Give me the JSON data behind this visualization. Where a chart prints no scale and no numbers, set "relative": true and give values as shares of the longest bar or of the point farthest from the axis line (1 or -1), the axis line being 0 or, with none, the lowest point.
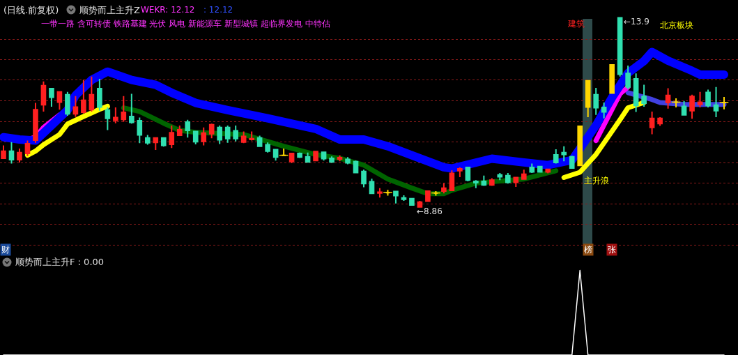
{
  "chart_data": [
    {
      "type": "candlestick",
      "title": "(日线.前复权)",
      "subtitle": "顺势而上主升Z",
      "annotations": [
        "WEKR: 12.12",
        ": 12.12",
        "一带一路 含可转债 铁路基建 光伏 风电 新能源车 新型城镇 超临界发电 中特估",
        "建筑",
        "北京板块",
        "主升浪",
        "←8.86",
        "←13.9",
        "财",
        "榜",
        "张"
      ],
      "categories": [
        null,
        null,
        null,
        null,
        null,
        null,
        null,
        null,
        null,
        null,
        null,
        null,
        null,
        null,
        null,
        null,
        null,
        null,
        null,
        null,
        null,
        null,
        null,
        null,
        null,
        null,
        null,
        null,
        null,
        null,
        null,
        null,
        null,
        null,
        null,
        null,
        null,
        null,
        null,
        null,
        null,
        null,
        null,
        null,
        null,
        null,
        null,
        null,
        null,
        null,
        null,
        null,
        null,
        null,
        null,
        null,
        null,
        null,
        null,
        null,
        null,
        null,
        null,
        null,
        null,
        null,
        null,
        null,
        null,
        null,
        null,
        null,
        null,
        null,
        null,
        null,
        null,
        null,
        null,
        null,
        null,
        null,
        null,
        null,
        null,
        null,
        null,
        null,
        null,
        null,
        null
      ],
      "ohlc": [
        [
          10.17,
          10.51,
          10.15,
          10.36
        ],
        [
          10.36,
          10.6,
          10.03,
          10.13
        ],
        [
          10.13,
          10.43,
          10.06,
          10.32
        ],
        [
          10.3,
          10.64,
          10.23,
          10.56
        ],
        [
          10.65,
          11.64,
          10.58,
          11.46
        ],
        [
          11.59,
          12.21,
          11.41,
          12.1
        ],
        [
          12.02,
          12.02,
          11.54,
          11.79
        ],
        [
          11.66,
          11.94,
          11.46,
          11.93
        ],
        [
          11.86,
          11.93,
          11.3,
          11.35
        ],
        [
          11.35,
          11.82,
          11.27,
          11.53
        ],
        [
          11.39,
          12.25,
          11.36,
          11.71
        ],
        [
          11.46,
          12.34,
          11.41,
          11.86
        ],
        [
          12.02,
          12.28,
          11.43,
          11.53
        ],
        [
          11.45,
          11.52,
          10.92,
          11.23
        ],
        [
          11.18,
          11.52,
          11.1,
          11.25
        ],
        [
          11.2,
          11.82,
          11.14,
          11.39
        ],
        [
          11.28,
          11.88,
          11.09,
          11.12
        ],
        [
          11.17,
          11.25,
          10.57,
          10.79
        ],
        [
          10.71,
          10.79,
          10.53,
          10.58
        ],
        [
          10.59,
          10.71,
          10.39,
          10.71
        ],
        [
          10.71,
          10.73,
          10.48,
          10.51
        ],
        [
          10.54,
          11.04,
          10.44,
          10.85
        ],
        [
          10.78,
          11.04,
          10.77,
          10.93
        ],
        [
          11.13,
          11.19,
          10.72,
          10.91
        ],
        [
          10.88,
          10.9,
          10.54,
          10.61
        ],
        [
          10.62,
          10.99,
          10.51,
          10.84
        ],
        [
          10.82,
          11.09,
          10.7,
          11.06
        ],
        [
          10.99,
          11.04,
          10.55,
          10.66
        ],
        [
          10.99,
          11.04,
          10.58,
          10.69
        ],
        [
          10.9,
          11.04,
          10.62,
          10.69
        ],
        [
          10.6,
          10.88,
          10.57,
          10.75
        ],
        [
          10.67,
          10.88,
          10.64,
          10.69
        ],
        [
          10.71,
          10.77,
          10.47,
          10.49
        ],
        [
          10.53,
          10.59,
          10.32,
          10.36
        ],
        [
          10.4,
          10.41,
          10.11,
          10.2
        ],
        [
          10.25,
          10.43,
          10.24,
          10.25
        ],
        [
          10.09,
          10.3,
          10.04,
          10.3
        ],
        [
          10.3,
          10.32,
          10.18,
          10.2
        ],
        [
          10.21,
          10.32,
          10.06,
          10.07
        ],
        [
          10.11,
          10.35,
          10.1,
          10.35
        ],
        [
          10.33,
          10.35,
          10.11,
          10.16
        ],
        [
          10.17,
          10.22,
          10.05,
          10.07
        ],
        [
          10.15,
          10.25,
          10.09,
          10.19
        ],
        [
          10.14,
          10.2,
          10.01,
          10.05
        ],
        [
          10.08,
          10.11,
          9.79,
          9.79
        ],
        [
          9.82,
          9.87,
          9.4,
          9.5
        ],
        [
          9.55,
          9.63,
          9.24,
          9.24
        ],
        [
          9.25,
          9.38,
          9.13,
          9.27
        ],
        [
          9.26,
          9.33,
          9.18,
          9.26
        ],
        [
          9.29,
          9.29,
          8.97,
          9.18
        ],
        [
          9.12,
          9.19,
          9.04,
          9.08
        ],
        [
          9.1,
          9.12,
          8.92,
          8.93
        ],
        [
          8.88,
          9.04,
          8.86,
          9.01
        ],
        [
          9.03,
          9.32,
          9.02,
          9.3
        ],
        [
          9.25,
          9.3,
          9.18,
          9.25
        ],
        [
          9.3,
          9.51,
          9.24,
          9.38
        ],
        [
          9.32,
          9.85,
          9.3,
          9.77
        ],
        [
          9.84,
          9.93,
          9.67,
          9.89
        ],
        [
          9.93,
          9.93,
          9.56,
          9.59
        ],
        [
          9.56,
          9.59,
          9.38,
          9.52
        ],
        [
          9.56,
          9.71,
          9.44,
          9.46
        ],
        [
          9.46,
          9.64,
          9.44,
          9.59
        ],
        [
          9.73,
          9.78,
          9.59,
          9.68
        ],
        [
          9.71,
          9.78,
          9.5,
          9.53
        ],
        [
          9.53,
          9.66,
          9.41,
          9.66
        ],
        [
          9.62,
          9.87,
          9.61,
          9.75
        ],
        [
          9.93,
          10.03,
          9.78,
          9.81
        ],
        [
          9.95,
          9.95,
          9.79,
          9.81
        ],
        [
          9.81,
          9.88,
          9.77,
          9.88
        ],
        [
          10.26,
          10.41,
          10.03,
          10.06
        ],
        [
          10.32,
          10.49,
          10.09,
          10.27
        ],
        [
          10.21,
          10.24,
          9.9,
          9.91
        ],
        [
          9.98,
          11.02,
          9.98,
          11.02
        ],
        [
          11.53,
          12.23,
          11.26,
          12.23
        ],
        [
          11.86,
          12.04,
          11.32,
          11.51
        ],
        [
          11.52,
          11.65,
          11.23,
          11.4
        ],
        [
          11.9,
          12.65,
          11.9,
          12.65
        ],
        [
          13.9,
          13.9,
          12.34,
          12.4
        ],
        [
          12.42,
          12.63,
          12.0,
          12.06
        ],
        [
          12.28,
          12.42,
          11.4,
          11.57
        ],
        [
          11.81,
          12.12,
          11.54,
          11.63
        ],
        [
          10.99,
          11.41,
          10.81,
          11.23
        ],
        [
          11.09,
          11.26,
          11.03,
          11.23
        ],
        [
          11.65,
          12.03,
          11.49,
          11.84
        ],
        [
          11.66,
          11.76,
          11.52,
          11.66
        ],
        [
          11.55,
          11.69,
          11.32,
          11.32
        ],
        [
          11.43,
          11.86,
          11.22,
          11.81
        ],
        [
          11.6,
          11.93,
          11.52,
          11.66
        ],
        [
          11.92,
          11.99,
          11.52,
          11.57
        ],
        [
          11.58,
          12.06,
          11.26,
          11.43
        ],
        [
          11.65,
          11.8,
          11.47,
          11.65
        ]
      ],
      "colors": [
        "#ff2020",
        "#30e0b0",
        "#ff2020",
        "#ff2020",
        "#ff2020",
        "#ff2020",
        "#30e0b0",
        "#ff2020",
        "#30e0b0",
        "#ff2020",
        "#ff2020",
        "#ff2020",
        "#30e0b0",
        "#30e0b0",
        "#ff2020",
        "#ff2020",
        "#30e0b0",
        "#30e0b0",
        "#30e0b0",
        "#ff2020",
        "#30e0b0",
        "#ff2020",
        "#ff2020",
        "#30e0b0",
        "#30e0b0",
        "#ff2020",
        "#ff2020",
        "#30e0b0",
        "#30e0b0",
        "#30e0b0",
        "#ff2020",
        "#ff2020",
        "#30e0b0",
        "#30e0b0",
        "#30e0b0",
        "#ffd700",
        "#ff2020",
        "#30e0b0",
        "#30e0b0",
        "#ff2020",
        "#30e0b0",
        "#30e0b0",
        "#ff2020",
        "#30e0b0",
        "#30e0b0",
        "#30e0b0",
        "#30e0b0",
        "#ff2020",
        "#ffd700",
        "#30e0b0",
        "#30e0b0",
        "#30e0b0",
        "#ff2020",
        "#ff2020",
        "#ffd700",
        "#ff2020",
        "#ff2020",
        "#ff2020",
        "#30e0b0",
        "#30e0b0",
        "#30e0b0",
        "#ff2020",
        "#30e0b0",
        "#30e0b0",
        "#ff2020",
        "#ff2020",
        "#30e0b0",
        "#30e0b0",
        "#ff2020",
        "#30e0b0",
        "#30e0b0",
        "#30e0b0",
        "#ffd700",
        "#ffd700",
        "#30e0b0",
        "#30e0b0",
        "#ffd700",
        "#30e0b0",
        "#30e0b0",
        "#30e0b0",
        "#30e0b0",
        "#ff2020",
        "#ff2020",
        "#ff2020",
        "#ffd700",
        "#30e0b0",
        "#ff2020",
        "#ff2020",
        "#30e0b0",
        "#30e0b0",
        "#ffd700"
      ],
      "series": [
        {
          "type": "line",
          "color": "#0000ff",
          "values": [
            10.73,
            null,
            10.67,
            null,
            10.64,
            null,
            null,
            null,
            11.45,
            11.84,
            null,
            12.25,
            null,
            12.47,
            null,
            null,
            12.25,
            null,
            null,
            12.12,
            null,
            11.91,
            null,
            null,
            11.64,
            null,
            null,
            null,
            11.45,
            null,
            null,
            null,
            null,
            11.23,
            null,
            null,
            null,
            null,
            null,
            10.95,
            null,
            null,
            10.67,
            null,
            null,
            10.67,
            null,
            null,
            10.49,
            null,
            null,
            10.25,
            null,
            null,
            null,
            9.93,
            9.9,
            null,
            null,
            null,
            null,
            10.16,
            null,
            null,
            null,
            10.06,
            null,
            null,
            9.99,
            null,
            10.08,
            10.12,
            null,
            null,
            11.04,
            null,
            11.78,
            null,
            12.43,
            null,
            12.75,
            12.99,
            null,
            12.76,
            null,
            null,
            12.49,
            12.39,
            null,
            null,
            12.39
          ]
        },
        {
          "type": "line",
          "color": "#ff00ff",
          "values": [
            null,
            null,
            null,
            10.67,
            10.73,
            10.99,
            null,
            11.32,
            null,
            null,
            null,
            null,
            null,
            null,
            null,
            null,
            null,
            null,
            null,
            null,
            null,
            null,
            null,
            null,
            null,
            null,
            null,
            null,
            null,
            null,
            null,
            null,
            null,
            null,
            null,
            null,
            null,
            null,
            null,
            null,
            null,
            null,
            null,
            null,
            null,
            null,
            null,
            null,
            null,
            null,
            null,
            null,
            null,
            null,
            null,
            null,
            null,
            null,
            null,
            null,
            null,
            null,
            null,
            null,
            null,
            null,
            null,
            null,
            null,
            null,
            null,
            null,
            null,
            null,
            null,
            null,
            null,
            null,
            null,
            null,
            null,
            null,
            null,
            null,
            null,
            null,
            null,
            null,
            null,
            null,
            null
          ]
        },
        {
          "type": "line",
          "color": "#ff00ff",
          "values": [
            null,
            null,
            null,
            null,
            null,
            null,
            null,
            null,
            null,
            null,
            null,
            null,
            null,
            null,
            null,
            null,
            null,
            null,
            null,
            null,
            null,
            null,
            null,
            null,
            null,
            null,
            null,
            null,
            null,
            null,
            null,
            null,
            null,
            null,
            null,
            null,
            null,
            null,
            null,
            null,
            null,
            null,
            null,
            null,
            null,
            null,
            null,
            null,
            null,
            null,
            null,
            null,
            null,
            null,
            null,
            null,
            null,
            null,
            null,
            null,
            null,
            null,
            null,
            null,
            null,
            null,
            null,
            null,
            null,
            null,
            null,
            null,
            null,
            null,
            10.64,
            null,
            null,
            11.88,
            12.06,
            null,
            null,
            null,
            null,
            null,
            null,
            null,
            null,
            null,
            null,
            null,
            null
          ]
        },
        {
          "type": "line",
          "color": "#4040e0",
          "values": [
            null,
            null,
            null,
            null,
            null,
            null,
            null,
            null,
            null,
            null,
            null,
            null,
            null,
            null,
            null,
            null,
            null,
            null,
            null,
            null,
            null,
            null,
            null,
            null,
            null,
            null,
            null,
            null,
            null,
            null,
            null,
            null,
            null,
            null,
            null,
            null,
            null,
            null,
            null,
            null,
            null,
            null,
            null,
            null,
            null,
            null,
            null,
            null,
            null,
            null,
            null,
            null,
            null,
            null,
            null,
            null,
            null,
            null,
            null,
            null,
            null,
            null,
            null,
            null,
            null,
            null,
            null,
            null,
            null,
            null,
            null,
            null,
            null,
            null,
            null,
            null,
            null,
            null,
            11.91,
            null,
            null,
            11.73,
            11.65,
            null,
            null,
            11.6,
            null,
            null,
            null,
            null,
            11.6
          ]
        },
        {
          "type": "line",
          "color": "#ffff00",
          "values": [
            null,
            null,
            null,
            10.25,
            10.36,
            10.53,
            null,
            10.8,
            11.08,
            null,
            11.28,
            null,
            11.47,
            11.55,
            null,
            null,
            null,
            null,
            null,
            null,
            null,
            null,
            null,
            null,
            null,
            null,
            null,
            null,
            null,
            null,
            null,
            null,
            null,
            null,
            null,
            null,
            null,
            null,
            null,
            null,
            null,
            null,
            null,
            null,
            null,
            null,
            null,
            null,
            null,
            null,
            null,
            null,
            null,
            null,
            null,
            null,
            null,
            null,
            null,
            null,
            null,
            null,
            null,
            null,
            null,
            null,
            null,
            null,
            null,
            null,
            null,
            null,
            null,
            null,
            null,
            null,
            null,
            null,
            null,
            null,
            null,
            null,
            null,
            null,
            null,
            null,
            null,
            null,
            null,
            null,
            null
          ]
        },
        {
          "type": "line",
          "color": "#ffff00",
          "values": [
            null,
            null,
            null,
            null,
            null,
            null,
            null,
            null,
            null,
            null,
            null,
            null,
            null,
            null,
            null,
            null,
            null,
            null,
            null,
            null,
            null,
            null,
            null,
            null,
            null,
            null,
            null,
            null,
            null,
            null,
            null,
            null,
            null,
            null,
            null,
            null,
            null,
            null,
            null,
            null,
            null,
            null,
            null,
            null,
            null,
            null,
            null,
            null,
            null,
            null,
            null,
            null,
            null,
            null,
            null,
            null,
            null,
            null,
            null,
            null,
            null,
            null,
            null,
            null,
            null,
            null,
            null,
            null,
            null,
            null,
            9.66,
            null,
            9.8,
            null,
            10.27,
            null,
            null,
            11.19,
            11.51,
            null,
            11.65,
            null,
            null,
            null,
            null,
            null,
            null,
            null,
            null,
            null,
            null
          ]
        },
        {
          "type": "line",
          "color": "#006400",
          "values": [
            null,
            null,
            null,
            null,
            null,
            null,
            null,
            null,
            null,
            null,
            null,
            null,
            null,
            null,
            null,
            11.51,
            null,
            11.41,
            null,
            null,
            11.1,
            null,
            10.91,
            null,
            10.86,
            null,
            null,
            null,
            null,
            null,
            10.8,
            null,
            null,
            null,
            null,
            10.49,
            null,
            null,
            null,
            10.27,
            null,
            null,
            10.17,
            null,
            null,
            9.99,
            null,
            null,
            9.62,
            null,
            null,
            9.38,
            null,
            9.23,
            null,
            9.23,
            9.32,
            null,
            null,
            9.51,
            null,
            null,
            null,
            null,
            null,
            9.62,
            null,
            null,
            null,
            9.84,
            null,
            null,
            null,
            null,
            null,
            null,
            null,
            null,
            null,
            null,
            null,
            null,
            null,
            null,
            null,
            null,
            null,
            null,
            null,
            null,
            null
          ]
        }
      ],
      "ylim": [
        7.56,
        14.37
      ],
      "yticks": [
        {
          "value": 13.32,
          "label": null
        },
        {
          "value": 12.78,
          "label": null
        },
        {
          "value": 12.25,
          "label": null
        },
        {
          "value": 11.69,
          "label": null
        },
        {
          "value": 11.14,
          "label": null
        },
        {
          "value": 10.6,
          "label": null
        },
        {
          "value": 10.04,
          "label": null
        },
        {
          "value": 9.51,
          "label": null
        },
        {
          "value": 8.95,
          "label": null
        },
        {
          "value": 8.42,
          "label": null
        },
        {
          "value": 7.86,
          "label": null
        }
      ],
      "grid": "y"
    },
    {
      "type": "line",
      "title": "顺势而上主升F : 0.00",
      "relative": true,
      "categories": [
        null,
        null,
        null,
        null,
        null,
        null,
        null,
        null,
        null,
        null,
        null,
        null,
        null,
        null,
        null,
        null,
        null,
        null,
        null,
        null,
        null,
        null,
        null,
        null,
        null,
        null,
        null,
        null,
        null,
        null,
        null,
        null,
        null,
        null,
        null,
        null,
        null,
        null,
        null,
        null,
        null,
        null,
        null,
        null,
        null,
        null,
        null,
        null,
        null,
        null,
        null,
        null,
        null,
        null,
        null,
        null,
        null,
        null,
        null,
        null,
        null,
        null,
        null,
        null,
        null,
        null,
        null,
        null,
        null,
        null,
        null,
        null,
        null,
        null,
        null,
        null,
        null,
        null,
        null,
        null,
        null,
        null,
        null,
        null,
        null,
        null,
        null,
        null,
        null,
        null,
        null
      ],
      "color": "#ffffff",
      "values": [
        0,
        0,
        0,
        0,
        0,
        0,
        0,
        0,
        0,
        0,
        0,
        0,
        0,
        0,
        0,
        0,
        0,
        0,
        0,
        0,
        0,
        0,
        0,
        0,
        0,
        0,
        0,
        0,
        0,
        0,
        0,
        0,
        0,
        0,
        0,
        0,
        0,
        0,
        0,
        0,
        0,
        0,
        0,
        0,
        0,
        0,
        0,
        0,
        0,
        0,
        0,
        0,
        0,
        0,
        0,
        0,
        0,
        0,
        0,
        0,
        0,
        0,
        0,
        0,
        0,
        0,
        0,
        0,
        0,
        0,
        0,
        0,
        1,
        0,
        0,
        0,
        0,
        0,
        0,
        0,
        0,
        0,
        0,
        0,
        0,
        0,
        0,
        0,
        0,
        0,
        0
      ]
    }
  ]
}
